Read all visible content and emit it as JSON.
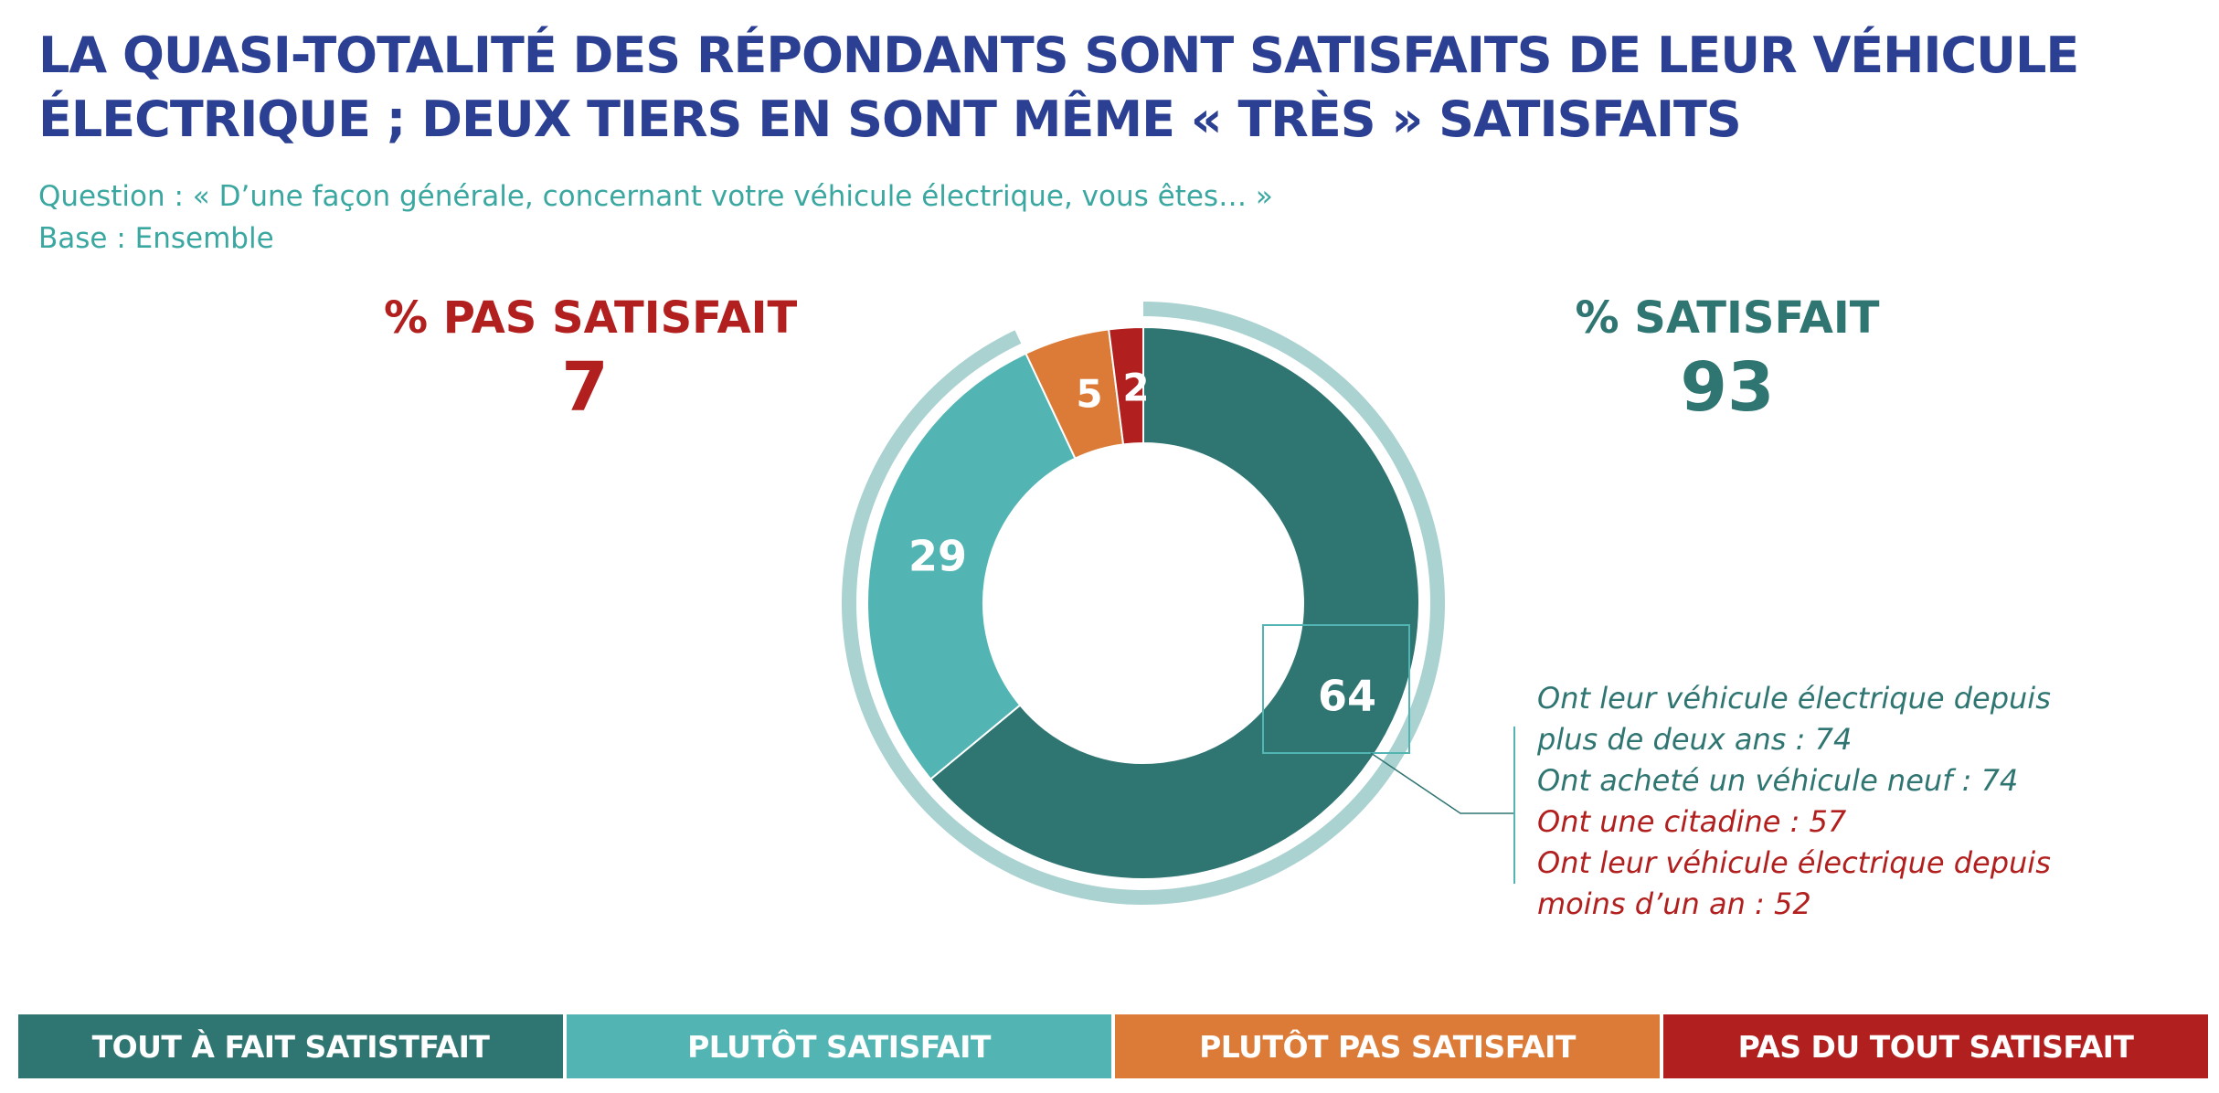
{
  "title": {
    "line1": "LA QUASI-TOTALITÉ DES RÉPONDANTS SONT SATISFAITS DE LEUR VÉHICULE",
    "line2": "ÉLECTRIQUE ; DEUX TIERS EN SONT MÊME « TRÈS » SATISFAITS"
  },
  "subtitle": {
    "question": "Question : « D’une façon générale, concernant votre véhicule électrique, vous êtes… »",
    "base": "Base : Ensemble"
  },
  "kpi_left": {
    "label": "% PAS SATISFAIT",
    "value": "7"
  },
  "kpi_right": {
    "label": "% SATISFAIT",
    "value": "93"
  },
  "colors": {
    "tout_a_fait": "#2f7572",
    "plutot": "#52b5b4",
    "plutot_pas": "#db7b37",
    "pas_du_tout": "#b1201e",
    "ring": "#a9d2d0",
    "title": "#2b3f93"
  },
  "chart_data": {
    "type": "pie",
    "hole": true,
    "slices": [
      {
        "name": "TOUT À FAIT SATISTFAIT",
        "value": 64,
        "color": "#2f7572"
      },
      {
        "name": "PLUTÔT SATISFAIT",
        "value": 29,
        "color": "#52b5b4"
      },
      {
        "name": "PLUTÔT PAS SATISFAIT",
        "value": 5,
        "color": "#db7b37"
      },
      {
        "name": "PAS DU TOUT SATISFAIT",
        "value": 2,
        "color": "#b1201e"
      }
    ],
    "outer_ring": {
      "value": 93,
      "color": "#a9d2d0"
    },
    "legend_position": "bottom"
  },
  "annotation": {
    "lines": [
      {
        "text": "Ont leur véhicule électrique depuis",
        "color": "#2f7572"
      },
      {
        "text": "plus de deux ans : 74",
        "color": "#2f7572"
      },
      {
        "text": "Ont acheté un véhicule neuf : 74",
        "color": "#2f7572"
      },
      {
        "text": "Ont une citadine : 57",
        "color": "#b1201e"
      },
      {
        "text": "Ont leur véhicule électrique depuis",
        "color": "#b1201e"
      },
      {
        "text": "moins d’un an : 52",
        "color": "#b1201e"
      }
    ]
  },
  "legend": [
    {
      "label": "TOUT À FAIT SATISTFAIT",
      "color": "#2f7572"
    },
    {
      "label": "PLUTÔT SATISFAIT",
      "color": "#52b5b4"
    },
    {
      "label": "PLUTÔT PAS SATISFAIT",
      "color": "#db7b37"
    },
    {
      "label": "PAS DU TOUT SATISFAIT",
      "color": "#b1201e"
    }
  ]
}
